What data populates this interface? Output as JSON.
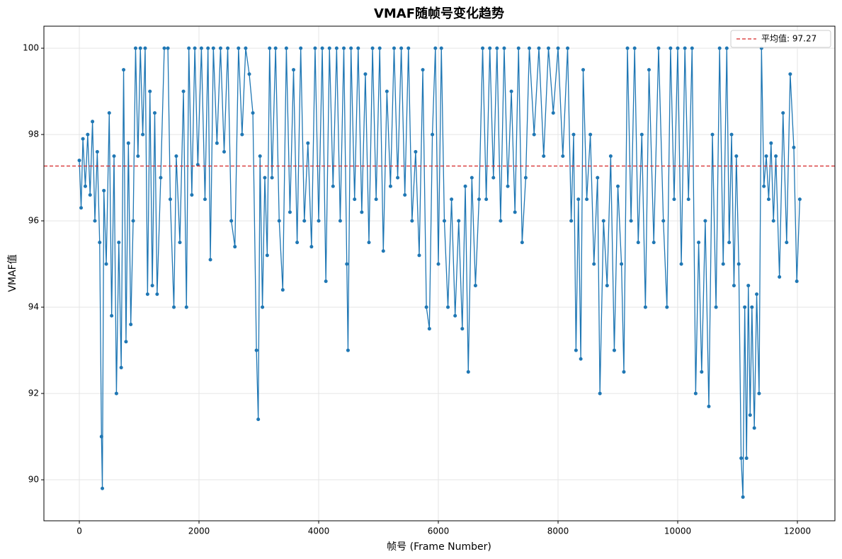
{
  "chart_data": {
    "type": "line",
    "title": "VMAF随帧号变化趋势",
    "xlabel": "帧号 (Frame Number)",
    "ylabel": "VMAF值",
    "x": [
      0,
      30,
      60,
      100,
      140,
      180,
      220,
      260,
      300,
      340,
      370,
      385,
      410,
      450,
      500,
      540,
      580,
      620,
      660,
      700,
      740,
      780,
      820,
      860,
      900,
      940,
      980,
      1020,
      1060,
      1100,
      1140,
      1180,
      1220,
      1260,
      1300,
      1360,
      1420,
      1480,
      1520,
      1580,
      1620,
      1680,
      1740,
      1790,
      1830,
      1880,
      1930,
      1980,
      2040,
      2100,
      2150,
      2190,
      2240,
      2300,
      2360,
      2420,
      2480,
      2540,
      2600,
      2660,
      2720,
      2780,
      2840,
      2900,
      2960,
      2990,
      3020,
      3060,
      3100,
      3140,
      3180,
      3220,
      3280,
      3340,
      3400,
      3460,
      3520,
      3580,
      3640,
      3700,
      3760,
      3820,
      3880,
      3940,
      4000,
      4060,
      4120,
      4180,
      4240,
      4300,
      4360,
      4420,
      4470,
      4490,
      4540,
      4600,
      4660,
      4720,
      4780,
      4840,
      4900,
      4960,
      5020,
      5080,
      5140,
      5200,
      5260,
      5320,
      5380,
      5440,
      5500,
      5560,
      5620,
      5680,
      5740,
      5800,
      5850,
      5900,
      5950,
      6000,
      6050,
      6100,
      6160,
      6220,
      6280,
      6340,
      6400,
      6450,
      6500,
      6560,
      6620,
      6680,
      6740,
      6800,
      6860,
      6920,
      6980,
      7040,
      7100,
      7160,
      7220,
      7280,
      7340,
      7400,
      7460,
      7520,
      7600,
      7680,
      7760,
      7840,
      7920,
      8000,
      8080,
      8160,
      8220,
      8260,
      8300,
      8340,
      8380,
      8420,
      8480,
      8540,
      8600,
      8660,
      8700,
      8760,
      8820,
      8880,
      8940,
      9000,
      9060,
      9100,
      9160,
      9220,
      9280,
      9340,
      9400,
      9460,
      9520,
      9600,
      9680,
      9760,
      9820,
      9880,
      9940,
      10000,
      10060,
      10120,
      10180,
      10240,
      10300,
      10350,
      10400,
      10460,
      10520,
      10580,
      10640,
      10700,
      10760,
      10820,
      10860,
      10900,
      10940,
      10980,
      11020,
      11060,
      11090,
      11120,
      11150,
      11180,
      11210,
      11240,
      11280,
      11320,
      11360,
      11400,
      11440,
      11480,
      11520,
      11560,
      11600,
      11640,
      11700,
      11760,
      11820,
      11880,
      11940,
      11990,
      12040
    ],
    "series": [
      {
        "name": "VMAF",
        "color": "#1f77b4",
        "values": [
          97.4,
          96.3,
          97.9,
          96.8,
          98.0,
          96.6,
          98.3,
          96.0,
          97.6,
          95.5,
          91.0,
          89.8,
          96.7,
          95.0,
          98.5,
          93.8,
          97.5,
          92.0,
          95.5,
          92.6,
          99.5,
          93.2,
          97.8,
          93.6,
          96.0,
          100,
          97.5,
          100,
          98.0,
          100,
          94.3,
          99.0,
          94.5,
          98.5,
          94.3,
          97.0,
          100,
          100,
          96.5,
          94.0,
          97.5,
          95.5,
          99.0,
          94.0,
          100,
          96.6,
          100,
          97.3,
          100,
          96.5,
          100,
          95.1,
          100,
          97.8,
          100,
          97.6,
          100,
          96.0,
          95.4,
          100,
          98.0,
          100,
          99.4,
          98.5,
          93.0,
          91.4,
          97.5,
          94.0,
          97.0,
          95.2,
          100,
          97.0,
          100,
          96.0,
          94.4,
          100,
          96.2,
          99.5,
          95.5,
          100,
          96.0,
          97.8,
          95.4,
          100,
          96.0,
          100,
          94.6,
          100,
          96.8,
          100,
          96.0,
          100,
          95.0,
          93.0,
          100,
          96.5,
          100,
          96.2,
          99.4,
          95.5,
          100,
          96.5,
          100,
          95.3,
          99.0,
          96.8,
          100,
          97.0,
          100,
          96.6,
          100,
          96.0,
          97.6,
          95.2,
          99.5,
          94.0,
          93.5,
          98.0,
          100,
          95.0,
          100,
          96.0,
          94.0,
          96.5,
          93.8,
          96.0,
          93.5,
          96.8,
          92.5,
          97.0,
          94.5,
          96.5,
          100,
          96.5,
          100,
          97.0,
          100,
          96.0,
          100,
          96.8,
          99.0,
          96.2,
          100,
          95.5,
          97.0,
          100,
          98.0,
          100,
          97.5,
          100,
          98.5,
          100,
          97.5,
          100,
          96.0,
          98.0,
          93.0,
          96.5,
          92.8,
          99.5,
          96.5,
          98.0,
          95.0,
          97.0,
          92.0,
          96.0,
          94.5,
          97.5,
          93.0,
          96.8,
          95.0,
          92.5,
          100,
          96.0,
          100,
          95.5,
          98.0,
          94.0,
          99.5,
          95.5,
          100,
          96.0,
          94.0,
          100,
          96.5,
          100,
          95.0,
          100,
          96.5,
          100,
          92.0,
          95.5,
          92.5,
          96.0,
          91.7,
          98.0,
          94.0,
          100,
          95.0,
          100,
          95.5,
          98.0,
          94.5,
          97.5,
          95.0,
          90.5,
          89.6,
          94.0,
          90.5,
          94.5,
          91.5,
          94.0,
          91.2,
          94.3,
          92.0,
          100,
          96.8,
          97.5,
          96.5,
          97.8,
          96.0,
          97.5,
          94.7,
          98.5,
          95.5,
          99.4,
          97.7,
          94.6,
          96.5
        ]
      }
    ],
    "mean_line": {
      "name": "平均值: 97.27",
      "value": 97.27,
      "color": "#d62728"
    },
    "xlim": [
      -592,
      12627
    ],
    "ylim": [
      89.05,
      100.51
    ],
    "xticks": [
      0,
      2000,
      4000,
      6000,
      8000,
      10000,
      12000
    ],
    "yticks": [
      90,
      92,
      94,
      96,
      98,
      100
    ],
    "grid": true,
    "legend": "upper right"
  }
}
